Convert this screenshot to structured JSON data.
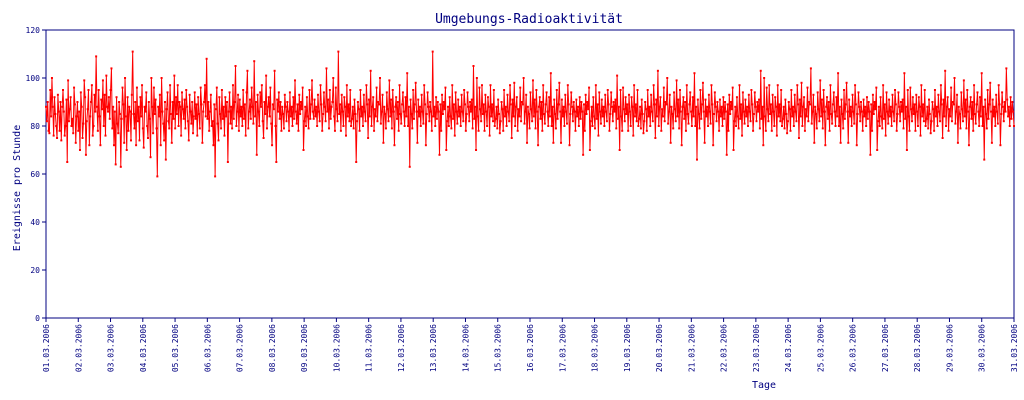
{
  "chart_data": {
    "type": "line",
    "title": "Umgebungs-Radioaktivität",
    "xlabel": "Tage",
    "ylabel": "Ereignisse pro Stunde",
    "ylim": [
      0,
      120
    ],
    "yticks": [
      "0",
      "20",
      "40",
      "60",
      "80",
      "100",
      "120"
    ],
    "xticks": [
      "01.03.2006",
      "02.03.2006",
      "03.03.2006",
      "04.03.2006",
      "05.03.2006",
      "06.03.2006",
      "07.03.2006",
      "08.03.2006",
      "09.03.2006",
      "10.03.2006",
      "11.03.2006",
      "12.03.2006",
      "13.03.2006",
      "14.03.2006",
      "15.03.2006",
      "16.03.2006",
      "17.03.2006",
      "18.03.2006",
      "19.03.2006",
      "20.03.2006",
      "21.03.2006",
      "22.03.2006",
      "23.03.2006",
      "24.03.2006",
      "25.03.2006",
      "26.03.2006",
      "27.03.2006",
      "28.03.2006",
      "29.03.2006",
      "30.03.2006",
      "31.03.2006"
    ],
    "grid": false,
    "colors": {
      "series": "#ff0000",
      "axis": "#000080",
      "text": "#000080",
      "frame": "#000080"
    },
    "series": [
      {
        "values": [
          88,
          82,
          90,
          78,
          77,
          95,
          84,
          100,
          88,
          76,
          92,
          85,
          80,
          75,
          93,
          86,
          78,
          90,
          74,
          88,
          95,
          86,
          76,
          80,
          91,
          65,
          99,
          82,
          87,
          92,
          80,
          83,
          77,
          96,
          89,
          73,
          84,
          90,
          78,
          86,
          70,
          94,
          88,
          75,
          81,
          99,
          92,
          68,
          82,
          87,
          95,
          72,
          84,
          90,
          97,
          76,
          80,
          93,
          86,
          109,
          88,
          78,
          95,
          84,
          72,
          91,
          87,
          99,
          80,
          93,
          76,
          101,
          88,
          86,
          92,
          83,
          95,
          104,
          79,
          88,
          72,
          86,
          64,
          92,
          81,
          77,
          90,
          85,
          63,
          83,
          96,
          89,
          73,
          100,
          84,
          70,
          92,
          78,
          88,
          86,
          74,
          93,
          111,
          85,
          79,
          90,
          72,
          96,
          82,
          88,
          74,
          92,
          84,
          97,
          79,
          71,
          88,
          86,
          94,
          80,
          75,
          90,
          83,
          67,
          100,
          88,
          77,
          96,
          85,
          91,
          79,
          59,
          88,
          84,
          93,
          72,
          100,
          86,
          81,
          74,
          90,
          66,
          87,
          94,
          82,
          79,
          97,
          85,
          73,
          90,
          83,
          101,
          79,
          92,
          85,
          97,
          80,
          90,
          88,
          76,
          94,
          87,
          83,
          91,
          79,
          95,
          88,
          82,
          74,
          93,
          86,
          81,
          90,
          77,
          84,
          94,
          83,
          89,
          76,
          92,
          85,
          79,
          96,
          89,
          73,
          86,
          90,
          97,
          84,
          108,
          83,
          90,
          78,
          86,
          93,
          80,
          82,
          72,
          89,
          59,
          87,
          96,
          81,
          74,
          92,
          85,
          79,
          95,
          83,
          88,
          76,
          92,
          84,
          90,
          65,
          86,
          94,
          81,
          88,
          79,
          97,
          83,
          90,
          105,
          80,
          86,
          93,
          78,
          91,
          84,
          88,
          80,
          95,
          83,
          89,
          76,
          94,
          103,
          79,
          86,
          91,
          83,
          96,
          88,
          81,
          107,
          84,
          90,
          68,
          93,
          86,
          80,
          94,
          88,
          97,
          82,
          75,
          90,
          85,
          101,
          79,
          88,
          92,
          84,
          96,
          81,
          72,
          89,
          87,
          103,
          80,
          65,
          91,
          86,
          94,
          83,
          90,
          78,
          88,
          85,
          79,
          93,
          88,
          82,
          90,
          86,
          78,
          94,
          84,
          88,
          80,
          92,
          83,
          99,
          86,
          81,
          89,
          78,
          93,
          85,
          90,
          87,
          96,
          70,
          82,
          88,
          80,
          92,
          84,
          79,
          95,
          83,
          89,
          99,
          86,
          83,
          91,
          84,
          88,
          80,
          93,
          86,
          82,
          97,
          89,
          78,
          85,
          94,
          88,
          82,
          104,
          86,
          91,
          79,
          95,
          83,
          88,
          90,
          100,
          84,
          78,
          96,
          87,
          82,
          111,
          85,
          89,
          78,
          93,
          86,
          80,
          92,
          88,
          76,
          97,
          84,
          89,
          82,
          95,
          80,
          83,
          88,
          79,
          91,
          85,
          65,
          82,
          90,
          87,
          78,
          95,
          84,
          88,
          80,
          93,
          86,
          82,
          97,
          89,
          75,
          91,
          84,
          103,
          80,
          88,
          92,
          78,
          87,
          84,
          96,
          82,
          90,
          89,
          100,
          81,
          86,
          93,
          73,
          88,
          85,
          79,
          94,
          87,
          82,
          99,
          84,
          91,
          79,
          95,
          86,
          72,
          88,
          92,
          83,
          90,
          78,
          97,
          85,
          81,
          89,
          94,
          86,
          80,
          92,
          84,
          102,
          80,
          88,
          63,
          91,
          85,
          79,
          95,
          83,
          89,
          98,
          86,
          73,
          91,
          84,
          88,
          80,
          93,
          86,
          81,
          97,
          89,
          72,
          85,
          94,
          88,
          82,
          90,
          86,
          78,
          111,
          84,
          88,
          80,
          92,
          83,
          90,
          86,
          68,
          89,
          78,
          93,
          85,
          90,
          87,
          96,
          70,
          82,
          88,
          80,
          92,
          84,
          79,
          97,
          83,
          89,
          76,
          94,
          86,
          81,
          91,
          84,
          88,
          80,
          93,
          86,
          82,
          95,
          89,
          78,
          85,
          94,
          88,
          82,
          90,
          86,
          91,
          79,
          105,
          83,
          88,
          70,
          100,
          84,
          78,
          96,
          87,
          82,
          97,
          85,
          89,
          78,
          93,
          86,
          80,
          92,
          88,
          76,
          97,
          84,
          89,
          82,
          95,
          80,
          83,
          88,
          79,
          91,
          85,
          77,
          82,
          90,
          87,
          78,
          95,
          84,
          88,
          80,
          93,
          86,
          82,
          97,
          89,
          75,
          91,
          84,
          98,
          80,
          88,
          92,
          78,
          87,
          84,
          96,
          82,
          90,
          89,
          100,
          81,
          86,
          93,
          73,
          88,
          85,
          79,
          94,
          87,
          82,
          99,
          84,
          91,
          79,
          95,
          86,
          72,
          88,
          92,
          83,
          90,
          78,
          97,
          85,
          81,
          89,
          94,
          86,
          80,
          92,
          84,
          102,
          80,
          88,
          73,
          91,
          85,
          79,
          95,
          83,
          89,
          98,
          86,
          73,
          91,
          84,
          88,
          80,
          93,
          86,
          81,
          97,
          89,
          72,
          85,
          94,
          88,
          82,
          90,
          86,
          78,
          91,
          84,
          88,
          80,
          92,
          83,
          90,
          86,
          68,
          89,
          78,
          93,
          85,
          90,
          87,
          96,
          70,
          82,
          88,
          80,
          92,
          84,
          79,
          97,
          83,
          89,
          76,
          94,
          86,
          81,
          91,
          84,
          88,
          80,
          93,
          86,
          82,
          95,
          89,
          78,
          85,
          94,
          88,
          82,
          90,
          86,
          91,
          79,
          101,
          83,
          88,
          70,
          95,
          84,
          78,
          96,
          87,
          82,
          92,
          85,
          89,
          78,
          93,
          86,
          80,
          92,
          88,
          76,
          97,
          84,
          89,
          82,
          95,
          80,
          83,
          88,
          79,
          91,
          85,
          77,
          82,
          90,
          87,
          78,
          95,
          84,
          88,
          80,
          93,
          86,
          82,
          97,
          89,
          75,
          91,
          84,
          103,
          80,
          88,
          92,
          78,
          87,
          84,
          96,
          82,
          90,
          89,
          100,
          81,
          86,
          93,
          73,
          88,
          85,
          79,
          94,
          87,
          82,
          99,
          84,
          91,
          79,
          95,
          86,
          72,
          88,
          92,
          83,
          90,
          78,
          97,
          85,
          81,
          89,
          94,
          86,
          80,
          92,
          84,
          102,
          80,
          88,
          66,
          91,
          85,
          79,
          95,
          83,
          89,
          98,
          86,
          73,
          91,
          84,
          88,
          80,
          93,
          86,
          81,
          97,
          89,
          72,
          85,
          94,
          88,
          82,
          90,
          86,
          78,
          91,
          84,
          88,
          80,
          92,
          83,
          90,
          86,
          68,
          89,
          78,
          93,
          85,
          90,
          87,
          96,
          70,
          82,
          88,
          80,
          92,
          84,
          79,
          97,
          83,
          89,
          76,
          94,
          86,
          81,
          91,
          84,
          88,
          80,
          93,
          86,
          82,
          95,
          89,
          78,
          85,
          94,
          88,
          82,
          90,
          86,
          91,
          79,
          103,
          83,
          88,
          72,
          100,
          84,
          78,
          96,
          87,
          82,
          97,
          85,
          89,
          78,
          93,
          86,
          80,
          92,
          88,
          76,
          97,
          84,
          89,
          82,
          95,
          80,
          83,
          88,
          79,
          91,
          85,
          77,
          82,
          90,
          87,
          78,
          95,
          84,
          88,
          80,
          93,
          86,
          82,
          97,
          89,
          75,
          91,
          84,
          98,
          80,
          88,
          92,
          78,
          87,
          84,
          96,
          82,
          90,
          89,
          104,
          81,
          86,
          93,
          73,
          88,
          85,
          79,
          94,
          87,
          82,
          99,
          84,
          91,
          79,
          95,
          86,
          72,
          88,
          92,
          83,
          90,
          78,
          97,
          85,
          81,
          89,
          94,
          86,
          80,
          92,
          84,
          102,
          80,
          88,
          73,
          91,
          85,
          79,
          95,
          83,
          89,
          98,
          86,
          73,
          91,
          84,
          88,
          80,
          93,
          86,
          81,
          97,
          89,
          72,
          85,
          94,
          88,
          82,
          90,
          86,
          78,
          91,
          84,
          88,
          80,
          92,
          83,
          90,
          86,
          68,
          89,
          78,
          93,
          85,
          90,
          87,
          96,
          70,
          82,
          88,
          80,
          92,
          84,
          79,
          97,
          83,
          89,
          76,
          94,
          86,
          81,
          91,
          84,
          88,
          80,
          93,
          86,
          82,
          95,
          89,
          78,
          85,
          94,
          88,
          82,
          90,
          86,
          91,
          79,
          102,
          83,
          88,
          70,
          95,
          84,
          78,
          96,
          87,
          82,
          92,
          85,
          89,
          78,
          93,
          86,
          80,
          92,
          88,
          76,
          97,
          84,
          89,
          82,
          95,
          80,
          83,
          88,
          79,
          91,
          85,
          77,
          82,
          90,
          87,
          78,
          95,
          84,
          88,
          80,
          93,
          86,
          82,
          97,
          89,
          75,
          91,
          84,
          103,
          80,
          88,
          92,
          78,
          87,
          84,
          96,
          82,
          90,
          89,
          100,
          81,
          86,
          93,
          73,
          88,
          85,
          79,
          94,
          87,
          82,
          99,
          84,
          91,
          79,
          95,
          86,
          72,
          88,
          92,
          83,
          90,
          78,
          97,
          85,
          81,
          89,
          94,
          86,
          80,
          92,
          84,
          102,
          80,
          88,
          66,
          91,
          85,
          79,
          95,
          83,
          89,
          98,
          86,
          73,
          91,
          84,
          88,
          80,
          93,
          86,
          81,
          97,
          89,
          72,
          85,
          94,
          88,
          82,
          90,
          86,
          104,
          91,
          84,
          88,
          80,
          92,
          83,
          90,
          86,
          80
        ]
      }
    ]
  }
}
